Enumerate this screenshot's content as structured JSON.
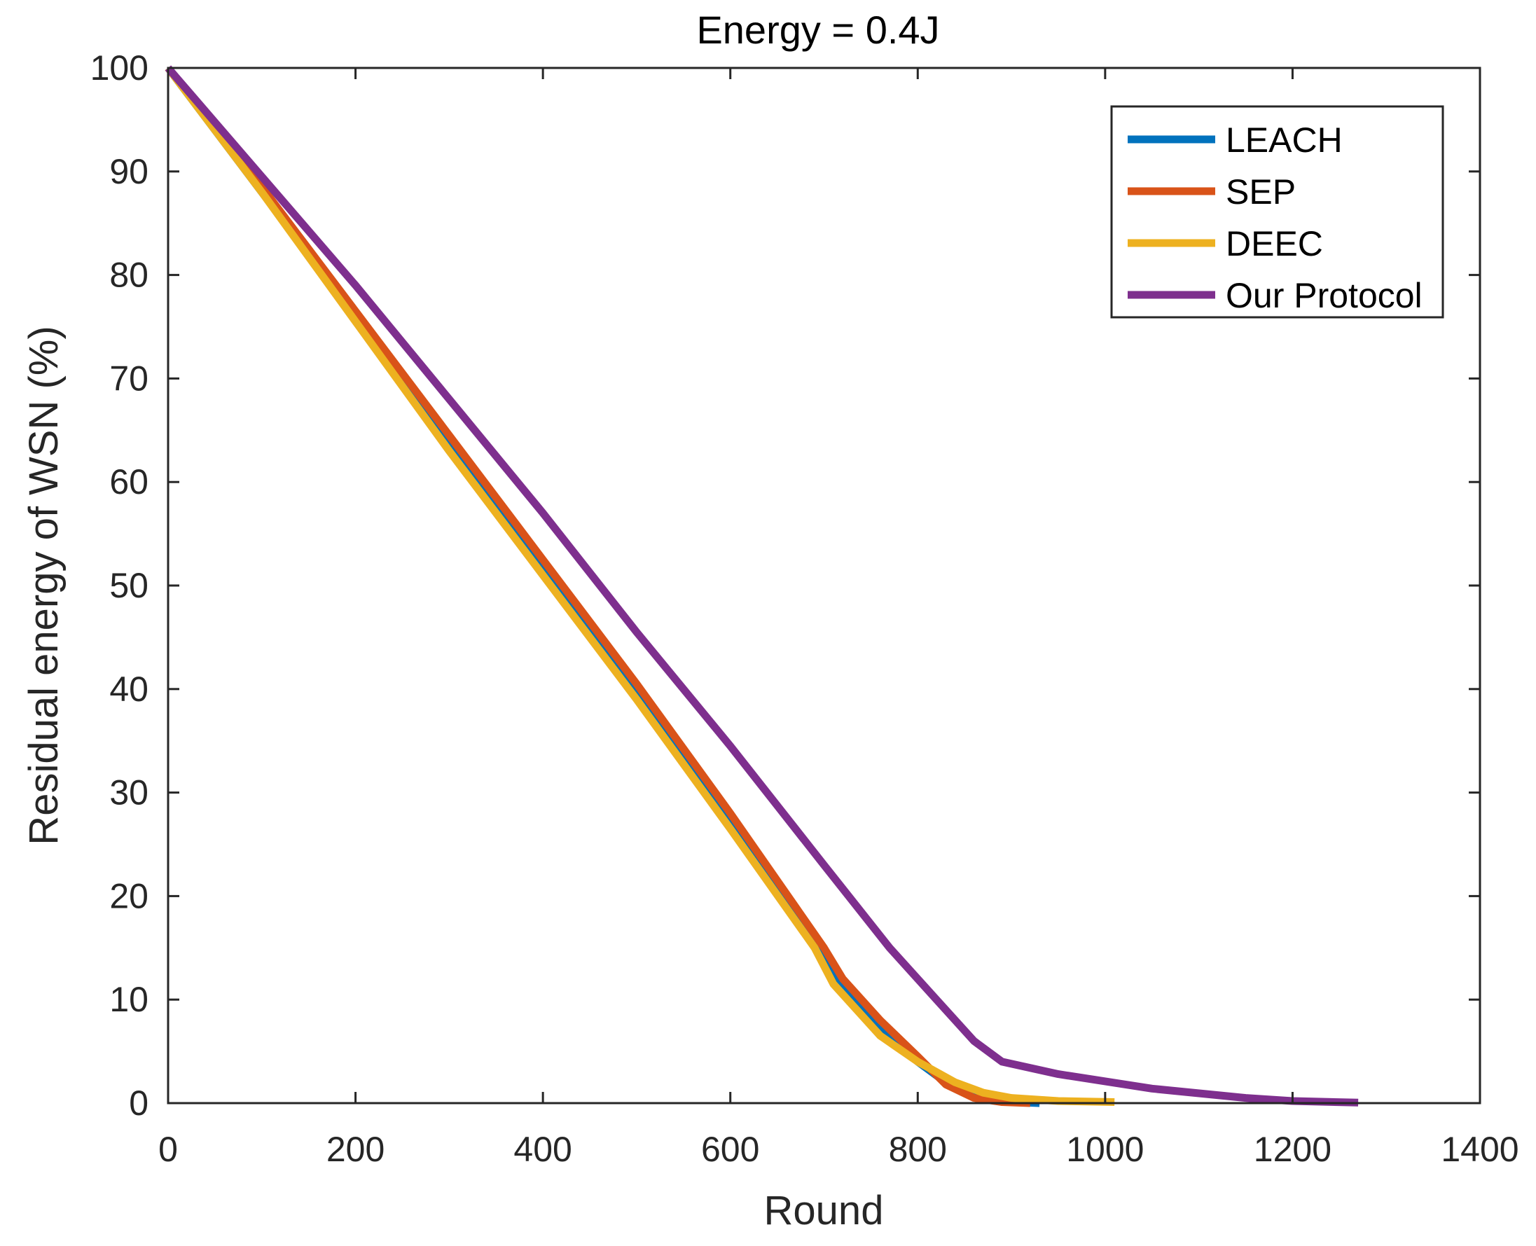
{
  "chart_data": {
    "type": "line",
    "title": "Energy = 0.4J",
    "xlabel": "Round",
    "ylabel": "Residual energy of WSN (%)",
    "xlim": [
      0,
      1400
    ],
    "ylim": [
      0,
      100
    ],
    "xticks": [
      0,
      200,
      400,
      600,
      800,
      1000,
      1200,
      1400
    ],
    "yticks": [
      0,
      10,
      20,
      30,
      40,
      50,
      60,
      70,
      80,
      90,
      100
    ],
    "grid": false,
    "legend_position": "top-right",
    "series": [
      {
        "name": "LEACH",
        "color": "#0072BD",
        "points": [
          [
            0,
            100
          ],
          [
            100,
            88
          ],
          [
            200,
            76
          ],
          [
            300,
            64
          ],
          [
            400,
            52
          ],
          [
            500,
            40
          ],
          [
            600,
            27.5
          ],
          [
            700,
            14
          ],
          [
            720,
            11
          ],
          [
            760,
            7
          ],
          [
            800,
            4
          ],
          [
            830,
            2
          ],
          [
            860,
            0.7
          ],
          [
            900,
            0.1
          ],
          [
            930,
            0
          ]
        ]
      },
      {
        "name": "SEP",
        "color": "#D95319",
        "points": [
          [
            0,
            100
          ],
          [
            100,
            88.5
          ],
          [
            200,
            76.5
          ],
          [
            300,
            64.5
          ],
          [
            400,
            52.5
          ],
          [
            500,
            40.5
          ],
          [
            600,
            28
          ],
          [
            700,
            15
          ],
          [
            720,
            12
          ],
          [
            760,
            8
          ],
          [
            800,
            4.5
          ],
          [
            830,
            1.8
          ],
          [
            860,
            0.5
          ],
          [
            890,
            0.1
          ],
          [
            920,
            0
          ]
        ]
      },
      {
        "name": "DEEC",
        "color": "#EDB120",
        "points": [
          [
            0,
            100
          ],
          [
            100,
            88
          ],
          [
            200,
            75.5
          ],
          [
            300,
            63
          ],
          [
            400,
            51
          ],
          [
            500,
            39
          ],
          [
            600,
            26.5
          ],
          [
            690,
            15
          ],
          [
            710,
            11.5
          ],
          [
            760,
            6.5
          ],
          [
            800,
            4
          ],
          [
            840,
            2
          ],
          [
            870,
            1
          ],
          [
            900,
            0.5
          ],
          [
            950,
            0.2
          ],
          [
            1010,
            0.1
          ]
        ]
      },
      {
        "name": "Our Protocol",
        "color": "#7E2F8E",
        "points": [
          [
            0,
            100
          ],
          [
            100,
            89.5
          ],
          [
            200,
            79
          ],
          [
            300,
            68
          ],
          [
            400,
            57
          ],
          [
            500,
            45.5
          ],
          [
            600,
            34.5
          ],
          [
            700,
            23
          ],
          [
            770,
            15
          ],
          [
            820,
            10
          ],
          [
            860,
            6
          ],
          [
            890,
            4
          ],
          [
            950,
            2.8
          ],
          [
            1050,
            1.4
          ],
          [
            1150,
            0.5
          ],
          [
            1200,
            0.2
          ],
          [
            1270,
            0.05
          ]
        ]
      }
    ]
  }
}
